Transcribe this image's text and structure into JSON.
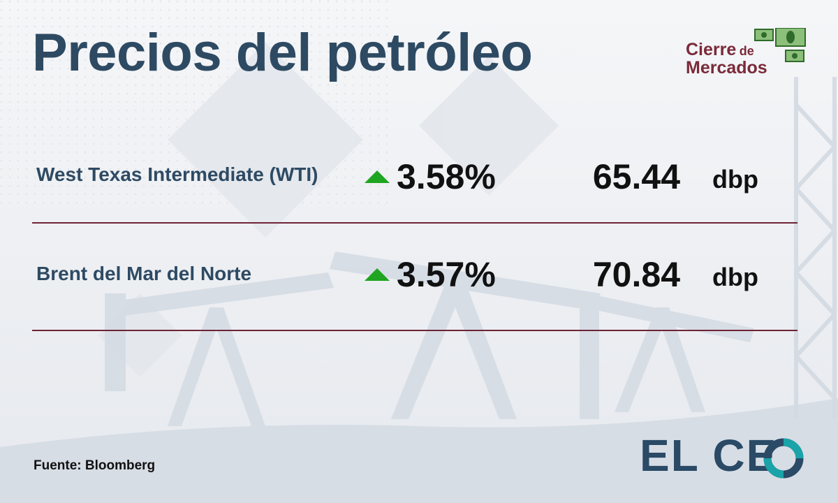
{
  "title": "Precios del petróleo",
  "badge": {
    "line1": "Cierre",
    "line1_small": "de",
    "line2": "Mercados",
    "icon": "money-bills-icon"
  },
  "rows": [
    {
      "name": "West Texas Intermediate (WTI)",
      "direction": "up",
      "change": "3.58%",
      "price": "65.44",
      "unit": "dbp"
    },
    {
      "name": "Brent del Mar del Norte",
      "direction": "up",
      "change": "3.57%",
      "price": "70.84",
      "unit": "dbp"
    }
  ],
  "source": "Fuente: Bloomberg",
  "logo": {
    "text": "EL CE",
    "brand": "EL CEO"
  },
  "colors": {
    "title": "#2e4a63",
    "row_label": "#2e4a63",
    "badge_text": "#7a2a3a",
    "divider": "#6e2436",
    "up_arrow": "#1fa51f",
    "logo_text": "#2a4a66",
    "logo_accent": "#1aa3a8"
  }
}
